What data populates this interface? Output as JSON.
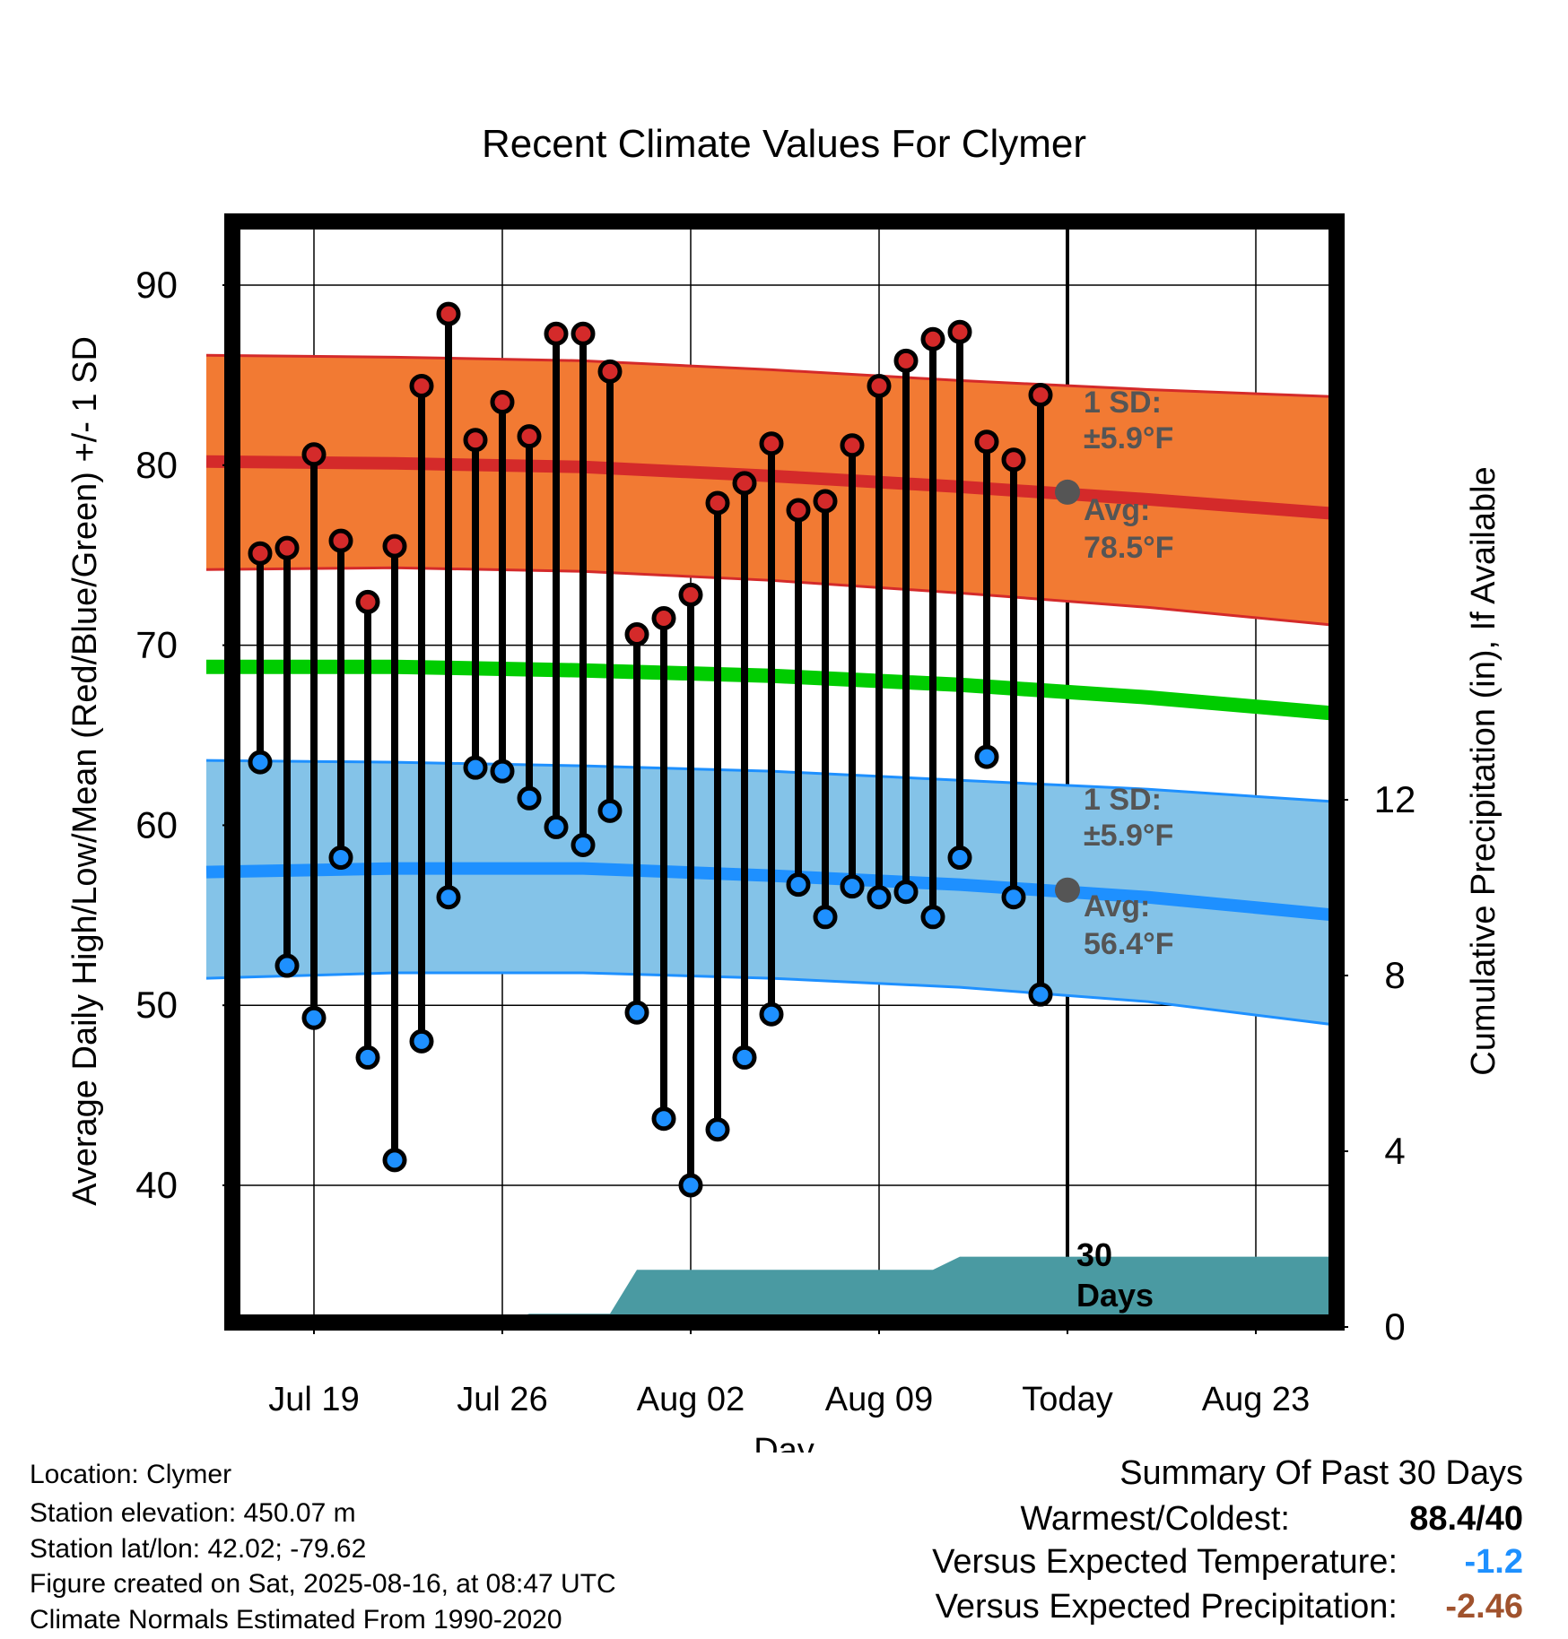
{
  "chart_data": {
    "type": "line",
    "title": "Recent Climate Values For Clymer",
    "xlabel": "Day",
    "ylabel": "Average Daily High/Low/Mean (Red/Blue/Green) +/- 1 SD",
    "y2label": "Cumulative Precipitation (in), If Available",
    "ylim": [
      32,
      94
    ],
    "y_ticks": [
      40,
      50,
      60,
      70,
      80,
      90
    ],
    "y2lim": [
      0,
      30
    ],
    "y2_ticks": [
      0,
      4,
      8,
      12
    ],
    "x_ticks": [
      "Jul 19",
      "Jul 26",
      "Aug 02",
      "Aug 09",
      "Today",
      "Aug 23"
    ],
    "x_start_date": "2025-07-15",
    "x_end_date": "2025-08-26",
    "today_date": "2025-08-16",
    "grid": true,
    "daily_observations": {
      "dates": [
        "2025-07-17",
        "2025-07-18",
        "2025-07-19",
        "2025-07-20",
        "2025-07-21",
        "2025-07-22",
        "2025-07-23",
        "2025-07-24",
        "2025-07-25",
        "2025-07-26",
        "2025-07-27",
        "2025-07-28",
        "2025-07-29",
        "2025-07-30",
        "2025-07-31",
        "2025-08-01",
        "2025-08-02",
        "2025-08-03",
        "2025-08-04",
        "2025-08-05",
        "2025-08-06",
        "2025-08-07",
        "2025-08-08",
        "2025-08-09",
        "2025-08-10",
        "2025-08-11",
        "2025-08-12",
        "2025-08-13",
        "2025-08-14",
        "2025-08-15"
      ],
      "high": [
        75.1,
        75.4,
        80.6,
        75.8,
        72.4,
        75.5,
        84.4,
        88.4,
        81.4,
        83.5,
        81.6,
        87.3,
        87.3,
        85.2,
        70.6,
        71.5,
        72.8,
        77.9,
        79.0,
        81.2,
        77.5,
        78.0,
        81.1,
        84.4,
        85.8,
        87.0,
        87.4,
        81.3,
        80.3,
        83.9
      ],
      "low": [
        63.5,
        52.2,
        49.3,
        58.2,
        47.1,
        41.4,
        48.0,
        56.0,
        63.2,
        63.0,
        61.5,
        59.9,
        58.9,
        60.8,
        49.6,
        43.7,
        40.0,
        43.1,
        47.1,
        49.5,
        56.7,
        54.9,
        56.6,
        56.0,
        56.3,
        54.9,
        58.2,
        63.8,
        56.0,
        50.6
      ]
    },
    "normals": {
      "dates": [
        "2025-07-15",
        "2025-07-22",
        "2025-07-29",
        "2025-08-05",
        "2025-08-12",
        "2025-08-19",
        "2025-08-26"
      ],
      "avg_high": [
        80.2,
        80.1,
        79.9,
        79.4,
        78.8,
        78.1,
        77.3
      ],
      "avg_low": [
        57.4,
        57.6,
        57.6,
        57.2,
        56.7,
        56.0,
        55.0
      ],
      "avg_mean": [
        68.8,
        68.8,
        68.6,
        68.3,
        67.8,
        67.1,
        66.2
      ],
      "high_sd_upper": [
        86.1,
        86.0,
        85.8,
        85.3,
        84.7,
        84.2,
        83.8
      ],
      "high_sd_lower": [
        74.2,
        74.3,
        74.1,
        73.6,
        72.9,
        72.1,
        71.1
      ],
      "low_sd_upper": [
        63.6,
        63.5,
        63.3,
        63.0,
        62.5,
        62.0,
        61.3
      ],
      "low_sd_lower": [
        51.5,
        51.8,
        51.8,
        51.5,
        51.0,
        50.2,
        48.9
      ]
    },
    "precipitation": {
      "dates": [
        "2025-07-15",
        "2025-07-25",
        "2025-07-26",
        "2025-07-27",
        "2025-07-30",
        "2025-07-31",
        "2025-08-11",
        "2025-08-12",
        "2025-08-16",
        "2025-08-26"
      ],
      "cumulative_in": [
        0.0,
        0.0,
        0.1,
        0.3,
        0.3,
        1.3,
        1.3,
        1.6,
        1.6,
        1.6
      ]
    },
    "annotations": {
      "high_sd_label_1": "1 SD:",
      "high_sd_label_2": "±5.9°F",
      "high_avg_label_1": "Avg:",
      "high_avg_label_2": "78.5°F",
      "low_sd_label_1": "1 SD:",
      "low_sd_label_2": "±5.9°F",
      "low_avg_label_1": "Avg:",
      "low_avg_label_2": "56.4°F",
      "days_label_1": "30",
      "days_label_2": "Days"
    }
  },
  "colors": {
    "high_band": "#f27a33",
    "high_line": "#d42a2a",
    "low_band": "#84c3e8",
    "low_line": "#1e90ff",
    "mean_line": "#00cc00",
    "precip_fill": "#4a9aa2",
    "high_marker": "#d42a2a",
    "low_marker": "#1e90ff",
    "annotation_text": "#555555",
    "versus_temp": "#1e90ff",
    "versus_precip": "#a0522d"
  },
  "metadata": {
    "location": "Location: Clymer",
    "elevation": "Station elevation: 450.07 m",
    "latlon": "Station lat/lon: 42.02; -79.62",
    "created": "Figure created on Sat, 2025-08-16, at 08:47 UTC",
    "normals": "Climate Normals Estimated From 1990-2020"
  },
  "summary": {
    "title": "Summary Of Past 30 Days",
    "warmest_label": "Warmest/Coldest:",
    "warmest_value": "88.4/40",
    "temp_label": "Versus Expected Temperature:",
    "temp_value": "-1.2",
    "precip_label": "Versus Expected Precipitation:",
    "precip_value": "-2.46"
  }
}
